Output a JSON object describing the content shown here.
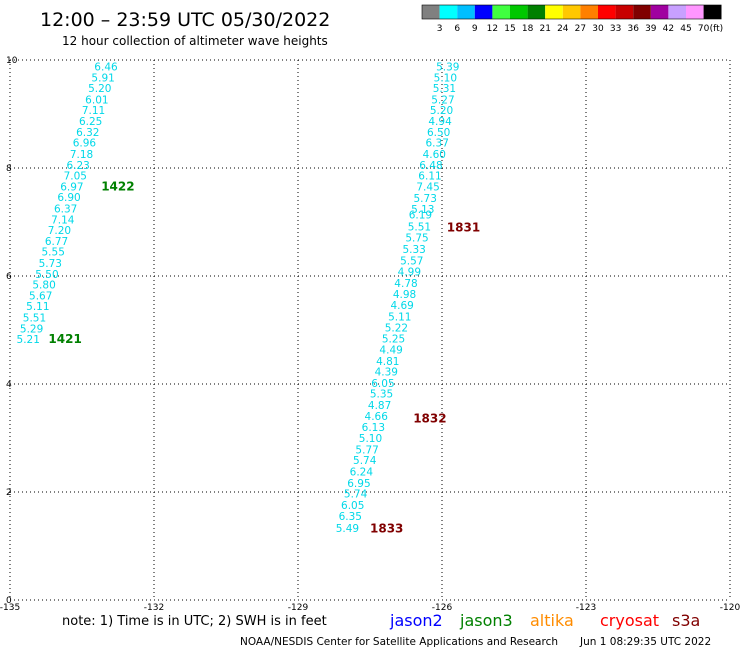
{
  "header": {
    "title": "12:00 – 23:59 UTC 05/30/2022",
    "subtitle": "12 hour collection of altimeter wave heights"
  },
  "colorbar": {
    "labels": [
      "3",
      "6",
      "9",
      "12",
      "15",
      "18",
      "21",
      "24",
      "27",
      "30",
      "33",
      "36",
      "39",
      "42",
      "45",
      "70"
    ],
    "unit": "(ft)",
    "colors": [
      "#808080",
      "#00ffff",
      "#00bfff",
      "#0000ff",
      "#40ff40",
      "#00c800",
      "#008000",
      "#ffff00",
      "#ffc800",
      "#ff8000",
      "#ff0000",
      "#c80000",
      "#800000",
      "#a000a0",
      "#c8a0ff",
      "#ff96ff",
      "#000000"
    ]
  },
  "chart_data": {
    "type": "scatter",
    "xlim": [
      -135,
      -120
    ],
    "ylim": [
      0,
      10
    ],
    "x_ticks": [
      "-135",
      "-132",
      "-129",
      "-126",
      "-123",
      "-120"
    ],
    "y_ticks": [
      "0",
      "2",
      "4",
      "6",
      "8",
      "10"
    ],
    "grid": true,
    "value_color": "#00d8e8",
    "tracks": [
      {
        "name": "track-west",
        "points": [
          {
            "x": -133.0,
            "y": 9.88,
            "label": "6.46"
          },
          {
            "x": -133.06,
            "y": 9.68,
            "label": "5.91"
          },
          {
            "x": -133.13,
            "y": 9.48,
            "label": "5.20"
          },
          {
            "x": -133.19,
            "y": 9.27,
            "label": "6.01"
          },
          {
            "x": -133.26,
            "y": 9.07,
            "label": "7.11"
          },
          {
            "x": -133.32,
            "y": 8.87,
            "label": "6.25"
          },
          {
            "x": -133.38,
            "y": 8.67,
            "label": "6.32"
          },
          {
            "x": -133.45,
            "y": 8.47,
            "label": "6.96"
          },
          {
            "x": -133.51,
            "y": 8.26,
            "label": "7.18"
          },
          {
            "x": -133.58,
            "y": 8.06,
            "label": "6.23"
          },
          {
            "x": -133.64,
            "y": 7.86,
            "label": "7.05"
          },
          {
            "x": -133.71,
            "y": 7.66,
            "label": "6.97"
          },
          {
            "x": -133.77,
            "y": 7.46,
            "label": "6.90"
          },
          {
            "x": -133.84,
            "y": 7.25,
            "label": "6.37"
          },
          {
            "x": -133.9,
            "y": 7.05,
            "label": "7.14"
          },
          {
            "x": -133.97,
            "y": 6.85,
            "label": "7.20"
          },
          {
            "x": -134.03,
            "y": 6.65,
            "label": "6.77"
          },
          {
            "x": -134.1,
            "y": 6.45,
            "label": "5.55"
          },
          {
            "x": -134.16,
            "y": 6.24,
            "label": "5.73"
          },
          {
            "x": -134.23,
            "y": 6.04,
            "label": "5.50"
          },
          {
            "x": -134.29,
            "y": 5.84,
            "label": "5.80"
          },
          {
            "x": -134.36,
            "y": 5.64,
            "label": "5.67"
          },
          {
            "x": -134.42,
            "y": 5.44,
            "label": "5.11"
          },
          {
            "x": -134.49,
            "y": 5.23,
            "label": "5.51"
          },
          {
            "x": -134.55,
            "y": 5.03,
            "label": "5.29"
          },
          {
            "x": -134.62,
            "y": 4.83,
            "label": "5.21"
          }
        ]
      },
      {
        "name": "track-east",
        "points": [
          {
            "x": -125.88,
            "y": 9.88,
            "label": "5.39"
          },
          {
            "x": -125.93,
            "y": 9.68,
            "label": "5.10"
          },
          {
            "x": -125.95,
            "y": 9.48,
            "label": "5.31"
          },
          {
            "x": -125.98,
            "y": 9.27,
            "label": "5.27"
          },
          {
            "x": -126.01,
            "y": 9.07,
            "label": "5.20"
          },
          {
            "x": -126.04,
            "y": 8.87,
            "label": "4.94"
          },
          {
            "x": -126.07,
            "y": 8.67,
            "label": "6.50"
          },
          {
            "x": -126.1,
            "y": 8.47,
            "label": "6.37"
          },
          {
            "x": -126.16,
            "y": 8.26,
            "label": "4.60"
          },
          {
            "x": -126.23,
            "y": 8.06,
            "label": "6.48"
          },
          {
            "x": -126.25,
            "y": 7.86,
            "label": "6.11"
          },
          {
            "x": -126.29,
            "y": 7.66,
            "label": "7.45"
          },
          {
            "x": -126.35,
            "y": 7.44,
            "label": "5.73"
          },
          {
            "x": -126.4,
            "y": 7.24,
            "label": "5.13"
          },
          {
            "x": -126.45,
            "y": 7.14,
            "label": "6.19"
          },
          {
            "x": -126.47,
            "y": 6.92,
            "label": "5.51"
          },
          {
            "x": -126.52,
            "y": 6.71,
            "label": "5.75"
          },
          {
            "x": -126.58,
            "y": 6.5,
            "label": "5.33"
          },
          {
            "x": -126.63,
            "y": 6.29,
            "label": "5.57"
          },
          {
            "x": -126.68,
            "y": 6.08,
            "label": "4.99"
          },
          {
            "x": -126.75,
            "y": 5.87,
            "label": "4.78"
          },
          {
            "x": -126.78,
            "y": 5.67,
            "label": "4.98"
          },
          {
            "x": -126.83,
            "y": 5.46,
            "label": "4.69"
          },
          {
            "x": -126.88,
            "y": 5.25,
            "label": "5.11"
          },
          {
            "x": -126.95,
            "y": 5.05,
            "label": "5.22"
          },
          {
            "x": -127.01,
            "y": 4.84,
            "label": "5.25"
          },
          {
            "x": -127.06,
            "y": 4.64,
            "label": "4.49"
          },
          {
            "x": -127.13,
            "y": 4.43,
            "label": "4.81"
          },
          {
            "x": -127.16,
            "y": 4.23,
            "label": "4.39"
          },
          {
            "x": -127.23,
            "y": 4.02,
            "label": "6.05"
          },
          {
            "x": -127.26,
            "y": 3.82,
            "label": "5.35"
          },
          {
            "x": -127.3,
            "y": 3.61,
            "label": "4.87"
          },
          {
            "x": -127.37,
            "y": 3.41,
            "label": "4.66"
          },
          {
            "x": -127.43,
            "y": 3.2,
            "label": "6.13"
          },
          {
            "x": -127.49,
            "y": 3.0,
            "label": "5.10"
          },
          {
            "x": -127.56,
            "y": 2.79,
            "label": "5.77"
          },
          {
            "x": -127.61,
            "y": 2.59,
            "label": "5.74"
          },
          {
            "x": -127.68,
            "y": 2.38,
            "label": "6.24"
          },
          {
            "x": -127.73,
            "y": 2.17,
            "label": "6.95"
          },
          {
            "x": -127.8,
            "y": 1.97,
            "label": "5.74"
          },
          {
            "x": -127.86,
            "y": 1.76,
            "label": "6.05"
          },
          {
            "x": -127.91,
            "y": 1.56,
            "label": "6.35"
          },
          {
            "x": -127.97,
            "y": 1.33,
            "label": "5.49"
          }
        ]
      }
    ],
    "pass_labels": [
      {
        "x": -133.1,
        "y": 7.66,
        "label": "1422",
        "color": "#008000"
      },
      {
        "x": -134.2,
        "y": 4.83,
        "label": "1421",
        "color": "#008000"
      },
      {
        "x": -125.9,
        "y": 6.9,
        "label": "1831",
        "color": "#800000"
      },
      {
        "x": -126.6,
        "y": 3.36,
        "label": "1832",
        "color": "#800000"
      },
      {
        "x": -127.5,
        "y": 1.32,
        "label": "1833",
        "color": "#800000"
      }
    ]
  },
  "note": "note: 1) Time is in UTC; 2) SWH is in feet",
  "satellites": [
    {
      "name": "jason2",
      "color": "#0000ff"
    },
    {
      "name": "jason3",
      "color": "#008000"
    },
    {
      "name": "altika",
      "color": "#ff8c00"
    },
    {
      "name": "cryosat",
      "color": "#ff0000"
    },
    {
      "name": "s3a",
      "color": "#800000"
    }
  ],
  "footer": {
    "source": "NOAA/NESDIS Center for Satellite Applications and Research",
    "timestamp": "Jun  1 08:29:35 UTC 2022"
  }
}
